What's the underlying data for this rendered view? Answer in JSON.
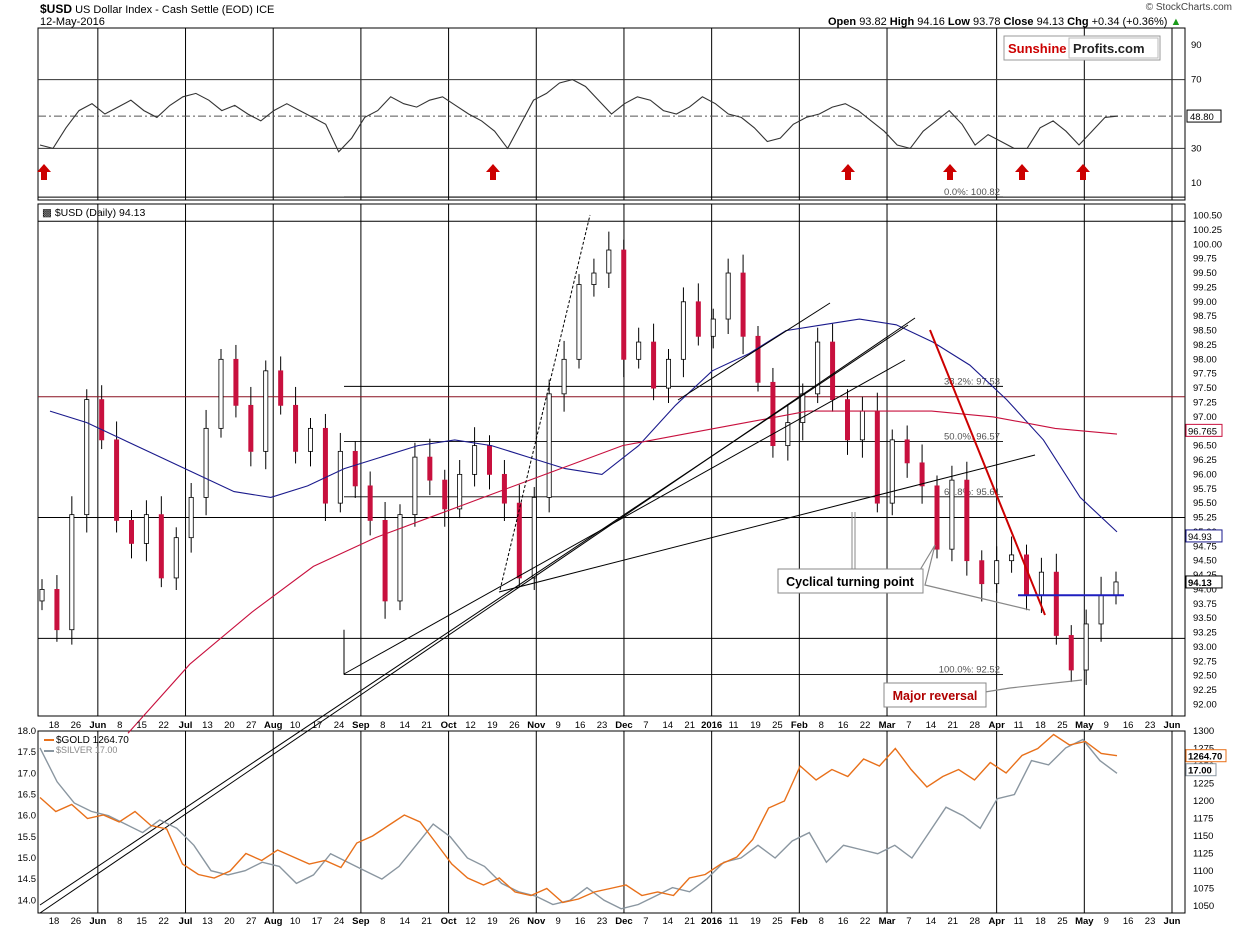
{
  "header": {
    "symbol": "$USD",
    "name": "US Dollar Index - Cash Settle (EOD)",
    "exchange": "ICE",
    "date": "12-May-2016",
    "open_label": "Open",
    "open": "93.82",
    "high_label": "High",
    "high": "94.16",
    "low_label": "Low",
    "low": "93.78",
    "close_label": "Close",
    "close": "94.13",
    "chg_label": "Chg",
    "chg": "+0.34 (+0.36%)",
    "watermark": "© StockCharts.com"
  },
  "logo": {
    "part1": "Sunshine",
    "part2": "Profits.com"
  },
  "colors": {
    "candle_up": "#ffffff",
    "candle_down": "#c8103e",
    "candle_edge": "#000000",
    "ma50": "#1a1a8c",
    "ma200": "#c8103e",
    "rsi": "#333333",
    "gold": "#e8701a",
    "silver": "#8a96a0",
    "arrow": "#cc0000",
    "trend_red": "#cc0000",
    "support_blue": "#1f1fbf",
    "annotation": "#b00000"
  },
  "chart_data": [
    {
      "type": "line",
      "panel": "RSI",
      "title": "RSI(14)",
      "yticks": [
        10,
        30,
        50,
        70,
        90
      ],
      "ylim": [
        0,
        100
      ],
      "last_value": "48.80",
      "series": [
        {
          "values": [
            32,
            30,
            42,
            52,
            56,
            50,
            54,
            58,
            52,
            48,
            55,
            60,
            62,
            58,
            52,
            55,
            50,
            46,
            52,
            56,
            52,
            48,
            44,
            28,
            36,
            48,
            52,
            60,
            56,
            54,
            58,
            60,
            55,
            50,
            46,
            40,
            30,
            44,
            58,
            62,
            68,
            70,
            66,
            58,
            50,
            56,
            60,
            58,
            52,
            50,
            54,
            60,
            56,
            50,
            48,
            42,
            34,
            36,
            44,
            48,
            50,
            54,
            56,
            52,
            46,
            40,
            32,
            30,
            40,
            46,
            52,
            44,
            32,
            38,
            34,
            30,
            30,
            42,
            46,
            40,
            32,
            40,
            48,
            48.8
          ]
        }
      ],
      "buy_signal_dates": [
        "May 18 2015",
        "Oct 13 2015",
        "Feb 11 2016",
        "Mar 14 2016",
        "Apr 13 2016",
        "Apr 29 2016"
      ]
    },
    {
      "type": "candlestick",
      "panel": "price",
      "title": "$USD (Daily) 94.13",
      "ylim": [
        91.8,
        100.7
      ],
      "yticks": [
        "92.00",
        "92.25",
        "92.50",
        "92.75",
        "93.00",
        "93.25",
        "93.50",
        "93.75",
        "94.00",
        "94.25",
        "94.50",
        "94.75",
        "95.00",
        "95.25",
        "95.50",
        "95.75",
        "96.00",
        "96.25",
        "96.50",
        "96.75",
        "97.00",
        "97.25",
        "97.50",
        "97.75",
        "98.00",
        "98.25",
        "98.50",
        "98.75",
        "99.00",
        "99.25",
        "99.50",
        "99.75",
        "100.00",
        "100.25",
        "100.50"
      ],
      "close_series": [
        94.0,
        93.3,
        95.3,
        97.3,
        96.6,
        95.2,
        94.8,
        95.3,
        94.2,
        94.9,
        95.6,
        96.8,
        98.0,
        97.2,
        96.4,
        97.8,
        97.2,
        96.4,
        96.8,
        95.5,
        96.4,
        95.8,
        95.2,
        93.8,
        95.3,
        96.3,
        95.9,
        95.4,
        96.0,
        96.5,
        96.0,
        95.5,
        94.2,
        95.6,
        97.4,
        98.0,
        99.3,
        99.5,
        99.9,
        98.0,
        98.3,
        97.5,
        98.0,
        99.0,
        98.4,
        98.7,
        99.5,
        98.4,
        97.6,
        96.5,
        96.9,
        97.4,
        98.3,
        97.3,
        96.6,
        97.1,
        95.5,
        96.6,
        96.2,
        95.8,
        94.7,
        95.9,
        94.5,
        94.1,
        94.5,
        94.6,
        93.9,
        94.3,
        93.2,
        92.6,
        93.4,
        93.9,
        94.13
      ],
      "ma50": [
        97.1,
        96.9,
        96.6,
        96.3,
        96.0,
        95.7,
        95.6,
        95.8,
        96.1,
        96.3,
        96.5,
        96.6,
        96.5,
        96.3,
        96.1,
        96.0,
        96.5,
        97.2,
        97.8,
        98.1,
        98.5,
        98.6,
        98.7,
        98.6,
        98.3,
        97.9,
        97.3,
        96.6,
        95.6,
        95.0
      ],
      "ma200": [
        91.5,
        92.7,
        93.6,
        94.4,
        94.9,
        95.3,
        95.7,
        96.1,
        96.5,
        96.7,
        96.9,
        97.1,
        97.1,
        97.1,
        97.0,
        96.8,
        96.7
      ],
      "levels": {
        "top": "100.82",
        "fib_0": "100.82",
        "fib_38_2": "97.53",
        "fib_50": "96.57",
        "fib_61_8": "95.61",
        "fib_100": "92.52",
        "hline_97_35": "97.35",
        "hline_95_25": "95.25",
        "hline_93_15": "93.15",
        "support": "93.90",
        "ma200_last": "96.765",
        "ma50_last": "94.93",
        "last": "94.13"
      },
      "fib_labels": [
        "0.0%: 100.82",
        "38.2%: 97.53",
        "50.0%: 96.57",
        "61.8%: 95.61",
        "100.0%: 92.52"
      ],
      "annotations": [
        "Cyclical turning point",
        "Major reversal"
      ]
    },
    {
      "type": "line",
      "panel": "gold-silver",
      "series": [
        {
          "name": "$GOLD 1264.70",
          "axis": "right",
          "ylim": [
            1040,
            1300
          ],
          "yticks": [
            1050,
            1075,
            1100,
            1125,
            1150,
            1175,
            1200,
            1225,
            1250,
            1275,
            1300
          ],
          "last": "1264.70",
          "values": [
            1205,
            1185,
            1195,
            1175,
            1180,
            1170,
            1185,
            1165,
            1160,
            1110,
            1095,
            1090,
            1100,
            1125,
            1115,
            1130,
            1120,
            1110,
            1115,
            1105,
            1140,
            1150,
            1165,
            1180,
            1170,
            1140,
            1110,
            1090,
            1080,
            1090,
            1070,
            1065,
            1075,
            1055,
            1060,
            1070,
            1075,
            1080,
            1065,
            1070,
            1065,
            1090,
            1095,
            1110,
            1120,
            1145,
            1190,
            1200,
            1250,
            1230,
            1245,
            1235,
            1260,
            1250,
            1275,
            1245,
            1220,
            1235,
            1245,
            1230,
            1255,
            1240,
            1265,
            1275,
            1295,
            1280,
            1285,
            1268,
            1264.7
          ]
        },
        {
          "name": "$SILVER 17.00",
          "axis": "left",
          "ylim": [
            13.7,
            18.0
          ],
          "yticks": [
            "14.0",
            "14.5",
            "15.0",
            "15.5",
            "16.0",
            "16.5",
            "17.0",
            "17.5",
            "18.0"
          ],
          "last": "17.00",
          "values": [
            17.6,
            16.8,
            16.3,
            16.1,
            16.0,
            15.8,
            15.6,
            15.9,
            15.7,
            15.3,
            14.7,
            14.6,
            14.7,
            14.9,
            14.8,
            14.4,
            14.6,
            15.1,
            14.9,
            14.7,
            14.5,
            14.8,
            15.3,
            15.8,
            15.5,
            15.0,
            14.8,
            14.4,
            14.2,
            14.1,
            13.9,
            14.0,
            14.3,
            14.0,
            13.8,
            13.9,
            14.1,
            14.3,
            14.2,
            14.5,
            14.9,
            15.0,
            15.3,
            15.0,
            15.4,
            15.6,
            14.9,
            15.3,
            15.2,
            15.1,
            15.3,
            15.0,
            15.6,
            16.2,
            16.0,
            15.7,
            16.4,
            16.5,
            17.3,
            17.2,
            17.6,
            17.8,
            17.3,
            17.0
          ]
        }
      ]
    }
  ],
  "xaxis": {
    "labels": [
      "18",
      "26",
      "Jun",
      "8",
      "15",
      "22",
      "Jul",
      "13",
      "20",
      "27",
      "Aug",
      "10",
      "17",
      "24",
      "Sep",
      "8",
      "14",
      "21",
      "Oct",
      "12",
      "19",
      "26",
      "Nov",
      "9",
      "16",
      "23",
      "Dec",
      "7",
      "14",
      "21",
      "2016",
      "11",
      "19",
      "25",
      "Feb",
      "8",
      "16",
      "22",
      "Mar",
      "7",
      "14",
      "21",
      "28",
      "Apr",
      "11",
      "18",
      "25",
      "May",
      "9",
      "16",
      "23",
      "Jun"
    ],
    "bold_labels": [
      "Jun",
      "Jul",
      "Aug",
      "Sep",
      "Oct",
      "Nov",
      "Dec",
      "2016",
      "Feb",
      "Mar",
      "Apr",
      "May",
      "Jun"
    ]
  }
}
